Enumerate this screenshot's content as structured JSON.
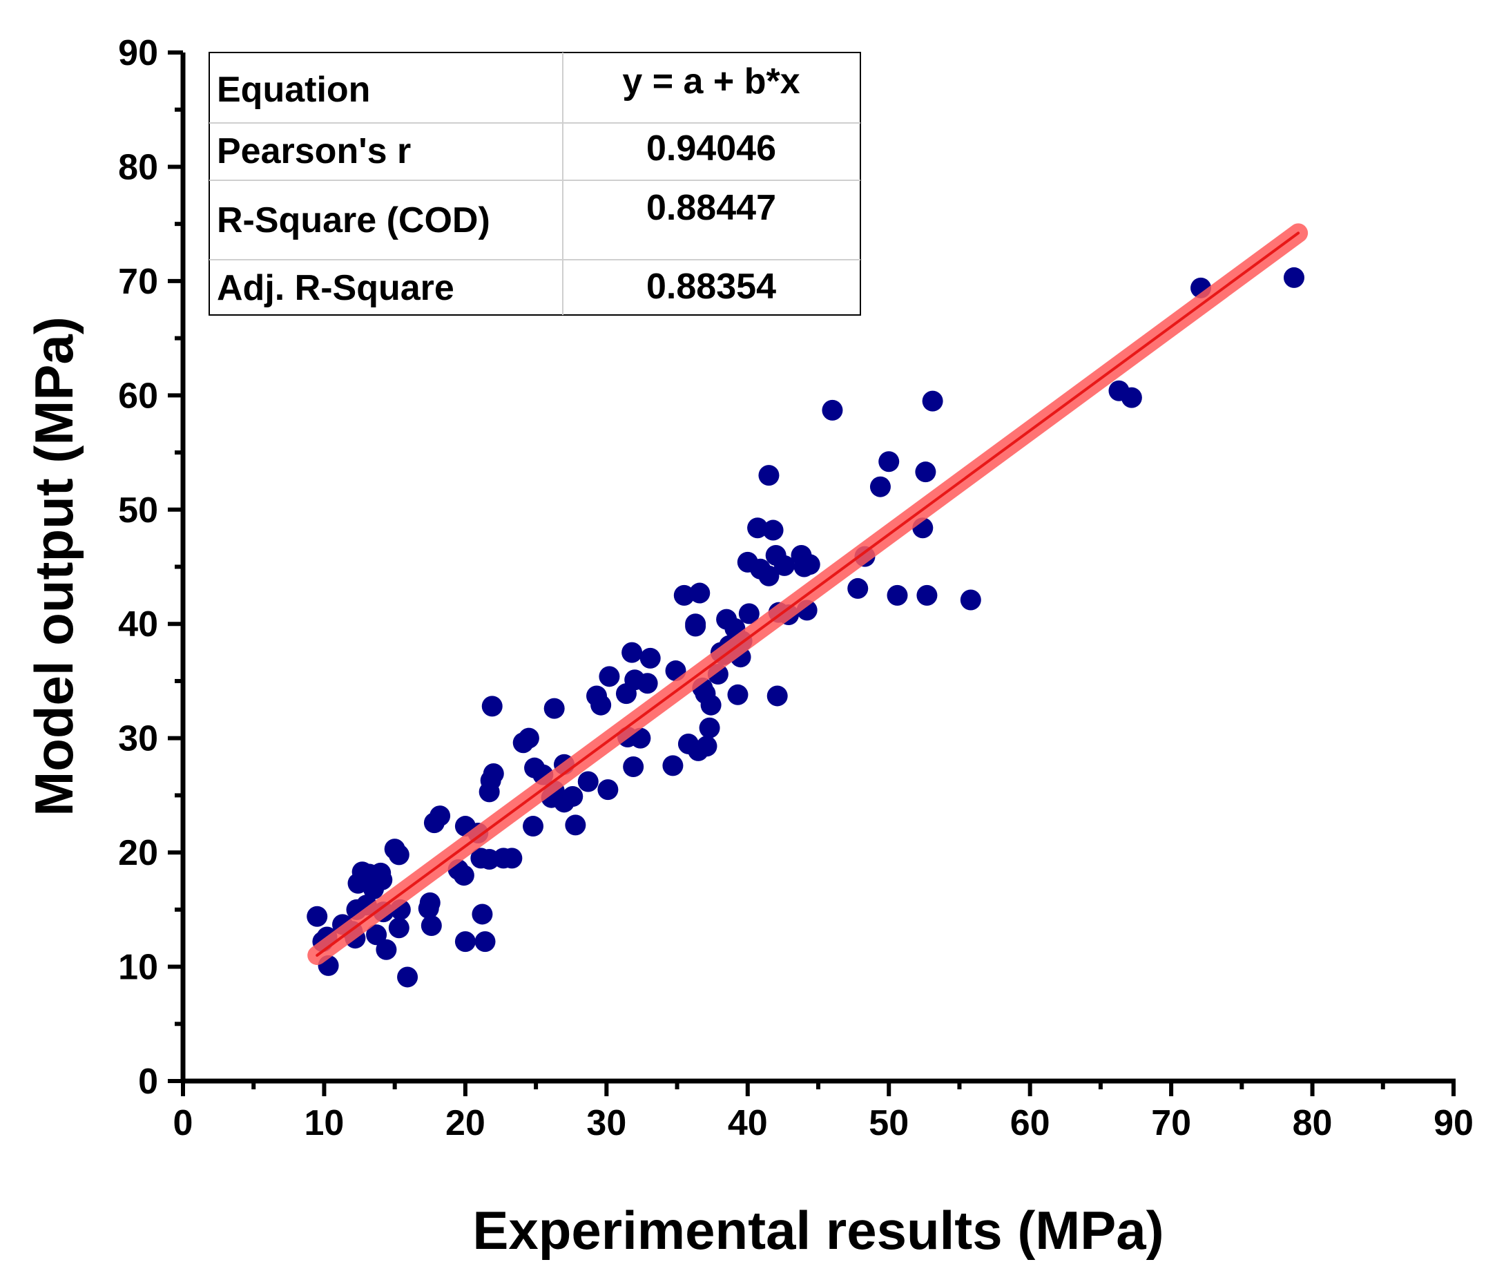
{
  "chart_data": {
    "type": "scatter",
    "xlabel": "Experimental results (MPa)",
    "ylabel": "Model output (MPa)",
    "xlim": [
      0,
      90
    ],
    "ylim": [
      0,
      90
    ],
    "major_ticks": [
      0,
      10,
      20,
      30,
      40,
      50,
      60,
      70,
      80,
      90
    ],
    "minor_ticks": [
      5,
      15,
      25,
      35,
      45,
      55,
      65,
      75,
      85
    ],
    "grid": false,
    "point_color": "#00008b",
    "fit_color": "#ff5a5a",
    "fit_line": {
      "x": [
        9.5,
        79
      ],
      "y": [
        11,
        74.2
      ]
    },
    "stats_table": [
      {
        "label": "Equation",
        "value": "y = a + b*x"
      },
      {
        "label": "Pearson's r",
        "value": "0.94046"
      },
      {
        "label": "R-Square (COD)",
        "value": "0.88447"
      },
      {
        "label": "Adj. R-Square",
        "value": "0.88354"
      }
    ],
    "points": [
      [
        9.5,
        14.4
      ],
      [
        9.9,
        12.2
      ],
      [
        10.2,
        12.6
      ],
      [
        10.3,
        10.1
      ],
      [
        11.3,
        13.7
      ],
      [
        12.0,
        13.1
      ],
      [
        12.2,
        12.5
      ],
      [
        12.3,
        15.0
      ],
      [
        12.4,
        17.3
      ],
      [
        12.7,
        18.3
      ],
      [
        13.0,
        15.4
      ],
      [
        13.2,
        18.1
      ],
      [
        13.5,
        16.8
      ],
      [
        13.7,
        12.8
      ],
      [
        14.0,
        18.2
      ],
      [
        14.1,
        17.6
      ],
      [
        14.2,
        14.8
      ],
      [
        14.4,
        11.5
      ],
      [
        15.0,
        20.3
      ],
      [
        15.3,
        19.8
      ],
      [
        15.4,
        15.0
      ],
      [
        15.3,
        13.4
      ],
      [
        15.9,
        9.1
      ],
      [
        17.4,
        15.1
      ],
      [
        17.5,
        15.6
      ],
      [
        17.6,
        13.6
      ],
      [
        17.8,
        22.6
      ],
      [
        18.2,
        23.2
      ],
      [
        19.5,
        18.5
      ],
      [
        19.9,
        18.0
      ],
      [
        20.0,
        12.2
      ],
      [
        20.0,
        22.3
      ],
      [
        20.9,
        21.7
      ],
      [
        21.1,
        19.5
      ],
      [
        21.2,
        14.6
      ],
      [
        21.4,
        12.2
      ],
      [
        21.7,
        19.4
      ],
      [
        21.7,
        25.3
      ],
      [
        21.8,
        26.3
      ],
      [
        21.9,
        32.8
      ],
      [
        22.0,
        26.9
      ],
      [
        22.7,
        19.5
      ],
      [
        23.3,
        19.5
      ],
      [
        24.1,
        29.6
      ],
      [
        24.5,
        30.0
      ],
      [
        24.8,
        22.3
      ],
      [
        24.9,
        27.4
      ],
      [
        25.5,
        26.8
      ],
      [
        26.1,
        24.8
      ],
      [
        26.3,
        25.4
      ],
      [
        26.3,
        32.6
      ],
      [
        27.0,
        27.7
      ],
      [
        27.0,
        24.4
      ],
      [
        27.6,
        24.9
      ],
      [
        27.8,
        22.4
      ],
      [
        28.7,
        26.2
      ],
      [
        29.3,
        33.7
      ],
      [
        29.6,
        32.9
      ],
      [
        30.1,
        25.5
      ],
      [
        30.2,
        35.4
      ],
      [
        31.4,
        33.9
      ],
      [
        31.5,
        30.1
      ],
      [
        31.8,
        37.5
      ],
      [
        31.9,
        27.5
      ],
      [
        32.0,
        35.1
      ],
      [
        32.4,
        30.0
      ],
      [
        32.9,
        34.8
      ],
      [
        33.1,
        37.0
      ],
      [
        34.7,
        27.6
      ],
      [
        34.9,
        35.9
      ],
      [
        35.5,
        42.5
      ],
      [
        35.8,
        29.5
      ],
      [
        36.3,
        40.0
      ],
      [
        36.3,
        39.8
      ],
      [
        36.5,
        28.9
      ],
      [
        36.6,
        42.7
      ],
      [
        36.8,
        34.4
      ],
      [
        37.0,
        33.9
      ],
      [
        37.1,
        29.3
      ],
      [
        37.3,
        30.9
      ],
      [
        37.4,
        32.9
      ],
      [
        37.9,
        35.6
      ],
      [
        38.1,
        37.5
      ],
      [
        38.3,
        37.3
      ],
      [
        38.5,
        40.4
      ],
      [
        38.7,
        38.1
      ],
      [
        39.1,
        39.6
      ],
      [
        39.3,
        33.8
      ],
      [
        39.5,
        37.1
      ],
      [
        39.6,
        38.5
      ],
      [
        40.0,
        45.4
      ],
      [
        40.1,
        40.9
      ],
      [
        40.7,
        48.4
      ],
      [
        40.9,
        44.8
      ],
      [
        41.5,
        53.0
      ],
      [
        41.5,
        44.2
      ],
      [
        41.8,
        48.2
      ],
      [
        42.0,
        46.0
      ],
      [
        42.1,
        33.7
      ],
      [
        42.2,
        41.0
      ],
      [
        42.6,
        45.1
      ],
      [
        42.9,
        40.8
      ],
      [
        43.8,
        46.0
      ],
      [
        44.0,
        45.0
      ],
      [
        44.2,
        41.2
      ],
      [
        44.4,
        45.2
      ],
      [
        46.0,
        58.7
      ],
      [
        47.8,
        43.1
      ],
      [
        48.3,
        45.9
      ],
      [
        49.4,
        52.0
      ],
      [
        50.0,
        54.2
      ],
      [
        50.6,
        42.5
      ],
      [
        52.4,
        48.4
      ],
      [
        52.6,
        53.3
      ],
      [
        52.7,
        42.5
      ],
      [
        53.1,
        59.5
      ],
      [
        55.8,
        42.1
      ],
      [
        66.3,
        60.4
      ],
      [
        67.2,
        59.8
      ],
      [
        72.1,
        69.4
      ],
      [
        78.7,
        70.3
      ]
    ]
  }
}
